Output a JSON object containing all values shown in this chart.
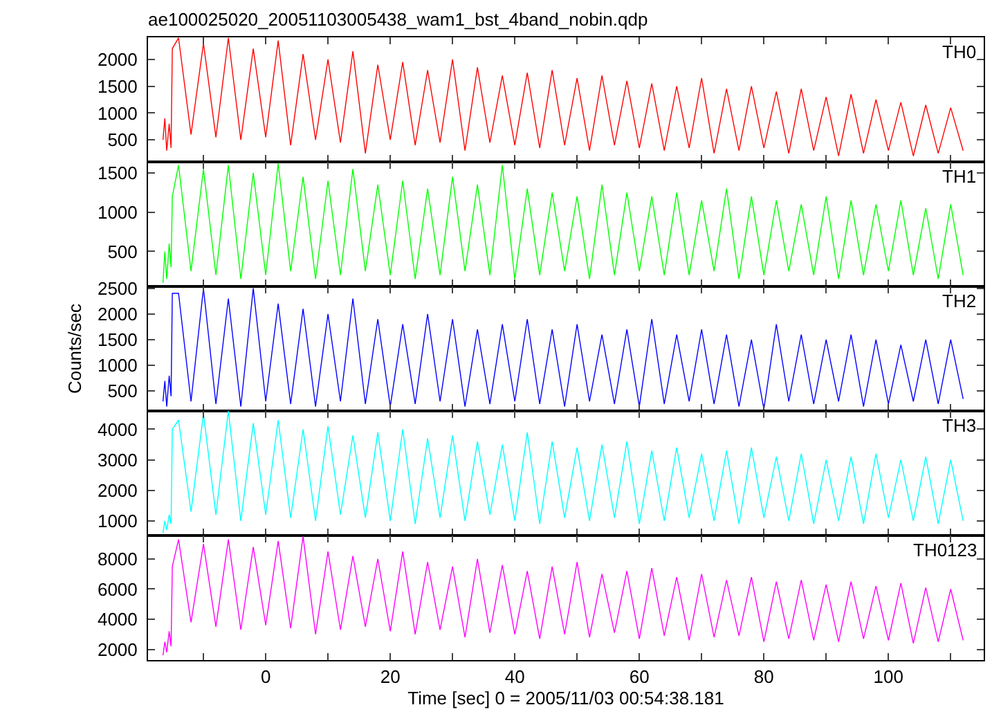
{
  "chart_data": [
    {
      "type": "line",
      "title": "ae100025020_20051103005438_wam1_bst_4band_nobin.qdp",
      "annotations": [
        "TH0"
      ],
      "tick_labels": "y",
      "xlim": [
        -18.9,
        115.3
      ],
      "xticks": [
        {
          "value": -10,
          "label": null
        },
        {
          "value": 0,
          "label": null
        },
        {
          "value": 10,
          "label": null
        },
        {
          "value": 20,
          "label": null
        },
        {
          "value": 30,
          "label": null
        },
        {
          "value": 40,
          "label": null
        },
        {
          "value": 50,
          "label": null
        },
        {
          "value": 60,
          "label": null
        },
        {
          "value": 70,
          "label": null
        },
        {
          "value": 80,
          "label": null
        },
        {
          "value": 90,
          "label": null
        },
        {
          "value": 100,
          "label": null
        },
        {
          "value": 110,
          "label": null
        }
      ],
      "ylim": [
        90,
        2410
      ],
      "yticks": [
        500,
        1000,
        1500,
        2000
      ],
      "x": [
        -16.5,
        -16.2,
        -15.9,
        -15.5,
        -15.2,
        -15,
        -14,
        -12,
        -10,
        -8,
        -6,
        -4,
        -2,
        0,
        2,
        4,
        6,
        8,
        10,
        12,
        14,
        16,
        18,
        20,
        22,
        24,
        26,
        28,
        30,
        32,
        34,
        36,
        38,
        40,
        42,
        44,
        46,
        48,
        50,
        52,
        54,
        56,
        58,
        60,
        62,
        64,
        66,
        68,
        70,
        72,
        74,
        76,
        78,
        80,
        82,
        84,
        86,
        88,
        90,
        92,
        94,
        96,
        98,
        100,
        102,
        104,
        106,
        108,
        110,
        112
      ],
      "series": [
        {
          "color": "#ff0000",
          "values": [
            500,
            900,
            300,
            800,
            350,
            2200,
            2400,
            600,
            2300,
            550,
            2400,
            500,
            2200,
            550,
            2350,
            400,
            2100,
            500,
            2000,
            450,
            2150,
            250,
            1900,
            500,
            1950,
            400,
            1800,
            450,
            2000,
            300,
            1850,
            450,
            1700,
            400,
            1750,
            350,
            1800,
            400,
            1650,
            300,
            1700,
            400,
            1600,
            350,
            1550,
            300,
            1500,
            350,
            1650,
            250,
            1450,
            300,
            1500,
            350,
            1400,
            250,
            1450,
            300,
            1300,
            200,
            1350,
            250,
            1250,
            300,
            1200,
            200,
            1150,
            250,
            1100,
            300
          ]
        }
      ]
    },
    {
      "type": "line",
      "annotations": [
        "TH1"
      ],
      "tick_labels": "y",
      "xlim": [
        -18.9,
        115.3
      ],
      "xticks": [
        {
          "value": -10,
          "label": null
        },
        {
          "value": 0,
          "label": null
        },
        {
          "value": 10,
          "label": null
        },
        {
          "value": 20,
          "label": null
        },
        {
          "value": 30,
          "label": null
        },
        {
          "value": 40,
          "label": null
        },
        {
          "value": 50,
          "label": null
        },
        {
          "value": 60,
          "label": null
        },
        {
          "value": 70,
          "label": null
        },
        {
          "value": 80,
          "label": null
        },
        {
          "value": 90,
          "label": null
        },
        {
          "value": 100,
          "label": null
        },
        {
          "value": 110,
          "label": null
        }
      ],
      "ylim": [
        55,
        1640
      ],
      "yticks": [
        500,
        1000,
        1500
      ],
      "x": [
        -16.5,
        -16.2,
        -15.9,
        -15.5,
        -15.2,
        -15,
        -14,
        -12,
        -10,
        -8,
        -6,
        -4,
        -2,
        0,
        2,
        4,
        6,
        8,
        10,
        12,
        14,
        16,
        18,
        20,
        22,
        24,
        26,
        28,
        30,
        32,
        34,
        36,
        38,
        40,
        42,
        44,
        46,
        48,
        50,
        52,
        54,
        56,
        58,
        60,
        62,
        64,
        66,
        68,
        70,
        72,
        74,
        76,
        78,
        80,
        82,
        84,
        86,
        88,
        90,
        92,
        94,
        96,
        98,
        100,
        102,
        104,
        106,
        108,
        110,
        112
      ],
      "series": [
        {
          "color": "#00ff00",
          "values": [
            100,
            500,
            150,
            600,
            300,
            1200,
            1600,
            250,
            1550,
            200,
            1600,
            150,
            1500,
            200,
            1620,
            250,
            1450,
            150,
            1400,
            200,
            1550,
            250,
            1350,
            200,
            1400,
            150,
            1300,
            200,
            1450,
            250,
            1350,
            200,
            1600,
            150,
            1300,
            200,
            1250,
            250,
            1200,
            150,
            1350,
            200,
            1250,
            250,
            1200,
            200,
            1250,
            200,
            1150,
            250,
            1300,
            150,
            1200,
            200,
            1150,
            250,
            1100,
            200,
            1200,
            150,
            1150,
            200,
            1100,
            250,
            1150,
            200,
            1050,
            150,
            1100,
            200
          ]
        }
      ]
    },
    {
      "type": "line",
      "ylabel": "Counts/sec",
      "annotations": [
        "TH2"
      ],
      "tick_labels": "y",
      "xlim": [
        -18.9,
        115.3
      ],
      "xticks": [
        {
          "value": -10,
          "label": null
        },
        {
          "value": 0,
          "label": null
        },
        {
          "value": 10,
          "label": null
        },
        {
          "value": 20,
          "label": null
        },
        {
          "value": 30,
          "label": null
        },
        {
          "value": 40,
          "label": null
        },
        {
          "value": 50,
          "label": null
        },
        {
          "value": 60,
          "label": null
        },
        {
          "value": 70,
          "label": null
        },
        {
          "value": 80,
          "label": null
        },
        {
          "value": 90,
          "label": null
        },
        {
          "value": 100,
          "label": null
        },
        {
          "value": 110,
          "label": null
        }
      ],
      "ylim": [
        115,
        2535
      ],
      "yticks": [
        500,
        1000,
        1500,
        2000,
        2500
      ],
      "x": [
        -16.5,
        -16.2,
        -15.9,
        -15.5,
        -15.2,
        -15,
        -14,
        -12,
        -10,
        -8,
        -6,
        -4,
        -2,
        0,
        2,
        4,
        6,
        8,
        10,
        12,
        14,
        16,
        18,
        20,
        22,
        24,
        26,
        28,
        30,
        32,
        34,
        36,
        38,
        40,
        42,
        44,
        46,
        48,
        50,
        52,
        54,
        56,
        58,
        60,
        62,
        64,
        66,
        68,
        70,
        72,
        74,
        76,
        78,
        80,
        82,
        84,
        86,
        88,
        90,
        92,
        94,
        96,
        98,
        100,
        102,
        104,
        106,
        108,
        110,
        112
      ],
      "series": [
        {
          "color": "#0000ff",
          "values": [
            300,
            700,
            200,
            800,
            400,
            2400,
            2400,
            300,
            2500,
            250,
            2300,
            200,
            2500,
            300,
            2200,
            250,
            2100,
            200,
            2000,
            300,
            2300,
            250,
            1900,
            200,
            1800,
            250,
            2000,
            300,
            1900,
            200,
            1700,
            250,
            1800,
            300,
            1900,
            250,
            1700,
            200,
            1800,
            300,
            1600,
            250,
            1700,
            200,
            1900,
            250,
            1600,
            300,
            1700,
            250,
            1600,
            200,
            1500,
            150,
            1800,
            300,
            1600,
            250,
            1500,
            300,
            1600,
            200,
            1500,
            250,
            1400,
            300,
            1500,
            250,
            1500,
            350
          ]
        }
      ]
    },
    {
      "type": "line",
      "annotations": [
        "TH3"
      ],
      "tick_labels": "y",
      "xlim": [
        -18.9,
        115.3
      ],
      "xticks": [
        {
          "value": -10,
          "label": null
        },
        {
          "value": 0,
          "label": null
        },
        {
          "value": 10,
          "label": null
        },
        {
          "value": 20,
          "label": null
        },
        {
          "value": 30,
          "label": null
        },
        {
          "value": 40,
          "label": null
        },
        {
          "value": 50,
          "label": null
        },
        {
          "value": 60,
          "label": null
        },
        {
          "value": 70,
          "label": null
        },
        {
          "value": 80,
          "label": null
        },
        {
          "value": 90,
          "label": null
        },
        {
          "value": 100,
          "label": null
        },
        {
          "value": 110,
          "label": null
        }
      ],
      "ylim": [
        520,
        4600
      ],
      "yticks": [
        1000,
        2000,
        3000,
        4000
      ],
      "x": [
        -16.5,
        -16.2,
        -15.9,
        -15.5,
        -15.2,
        -15,
        -14,
        -12,
        -10,
        -8,
        -6,
        -4,
        -2,
        0,
        2,
        4,
        6,
        8,
        10,
        12,
        14,
        16,
        18,
        20,
        22,
        24,
        26,
        28,
        30,
        32,
        34,
        36,
        38,
        40,
        42,
        44,
        46,
        48,
        50,
        52,
        54,
        56,
        58,
        60,
        62,
        64,
        66,
        68,
        70,
        72,
        74,
        76,
        78,
        80,
        82,
        84,
        86,
        88,
        90,
        92,
        94,
        96,
        98,
        100,
        102,
        104,
        106,
        108,
        110,
        112
      ],
      "series": [
        {
          "color": "#00ffff",
          "values": [
            600,
            1000,
            700,
            1200,
            900,
            4000,
            4300,
            1300,
            4500,
            1200,
            4600,
            1000,
            4200,
            1200,
            4300,
            1100,
            4000,
            1000,
            4100,
            1200,
            3800,
            1100,
            3900,
            1000,
            4000,
            900,
            3700,
            1100,
            3800,
            1000,
            3600,
            1200,
            3500,
            1000,
            3900,
            900,
            3600,
            1100,
            3400,
            1000,
            3500,
            1100,
            3600,
            900,
            3300,
            1000,
            3400,
            1100,
            3200,
            1000,
            3300,
            900,
            3400,
            1100,
            3100,
            1000,
            3200,
            900,
            3000,
            1000,
            3100,
            900,
            3200,
            1100,
            3000,
            1000,
            3100,
            900,
            3000,
            1000
          ]
        }
      ]
    },
    {
      "type": "line",
      "xlabel": "Time [sec] 0 = 2005/11/03 00:54:38.181",
      "annotations": [
        "TH0123"
      ],
      "xlim": [
        -18.9,
        115.3
      ],
      "xticks": [
        {
          "value": -10,
          "label": null
        },
        0,
        {
          "value": 10,
          "label": null
        },
        20,
        {
          "value": 30,
          "label": null
        },
        40,
        {
          "value": 50,
          "label": null
        },
        60,
        {
          "value": 70,
          "label": null
        },
        80,
        {
          "value": 90,
          "label": null
        },
        100,
        {
          "value": 110,
          "label": null
        }
      ],
      "ylim": [
        1290,
        9560
      ],
      "yticks": [
        2000,
        4000,
        6000,
        8000
      ],
      "x": [
        -16.5,
        -16.2,
        -15.9,
        -15.5,
        -15.2,
        -15,
        -14,
        -12,
        -10,
        -8,
        -6,
        -4,
        -2,
        0,
        2,
        4,
        6,
        8,
        10,
        12,
        14,
        16,
        18,
        20,
        22,
        24,
        26,
        28,
        30,
        32,
        34,
        36,
        38,
        40,
        42,
        44,
        46,
        48,
        50,
        52,
        54,
        56,
        58,
        60,
        62,
        64,
        66,
        68,
        70,
        72,
        74,
        76,
        78,
        80,
        82,
        84,
        86,
        88,
        90,
        92,
        94,
        96,
        98,
        100,
        102,
        104,
        106,
        108,
        110,
        112
      ],
      "series": [
        {
          "color": "#ff00ff",
          "values": [
            1600,
            2500,
            1800,
            3200,
            2200,
            7500,
            9300,
            3800,
            9000,
            3500,
            9300,
            3300,
            8800,
            3600,
            9200,
            3400,
            9500,
            3000,
            8500,
            3300,
            8200,
            3500,
            8000,
            3200,
            8500,
            3000,
            7800,
            3300,
            7500,
            2800,
            8000,
            3100,
            7600,
            3000,
            7200,
            2700,
            7500,
            3000,
            7800,
            2800,
            7000,
            3100,
            7200,
            2700,
            7400,
            2900,
            6800,
            2600,
            7000,
            2800,
            6600,
            2900,
            6800,
            2500,
            6500,
            2700,
            6600,
            2600,
            6300,
            2500,
            6500,
            2700,
            6200,
            2600,
            6400,
            2400,
            6100,
            2500,
            6000,
            2600
          ]
        }
      ]
    }
  ]
}
